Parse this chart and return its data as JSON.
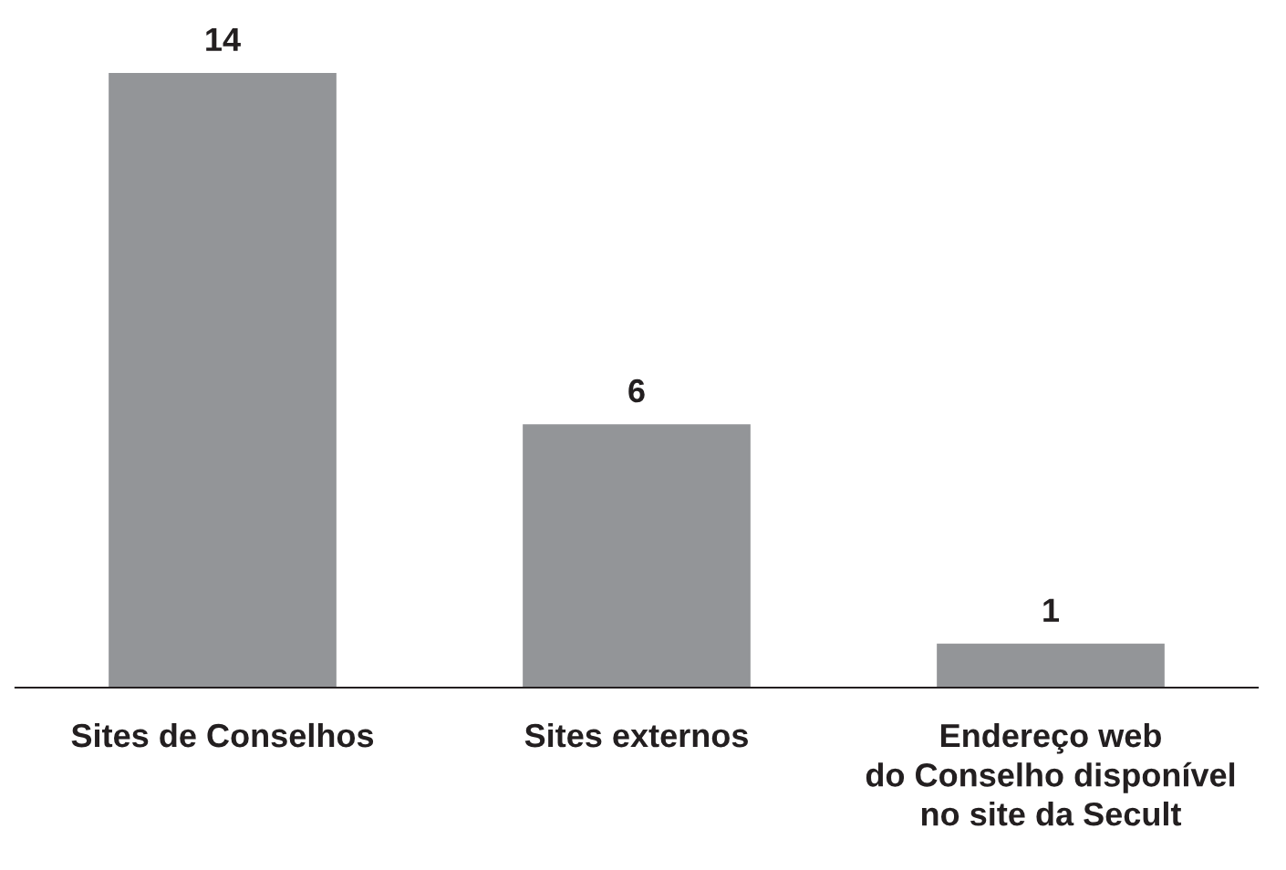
{
  "chart_data": {
    "type": "bar",
    "categories": [
      "Sites de Conselhos",
      "Sites externos",
      "Endereço web\ndo Conselho disponível\nno site da Secult"
    ],
    "values": [
      14,
      6,
      1
    ],
    "color": "#939598",
    "data_labels": true,
    "tick_labels": "x",
    "grid": false,
    "legend": false
  }
}
